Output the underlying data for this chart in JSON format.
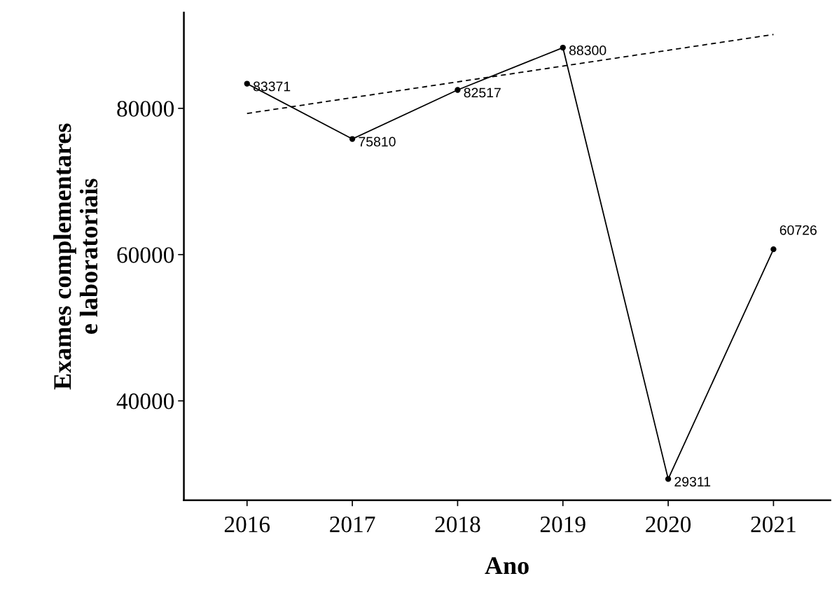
{
  "chart_data": {
    "type": "line",
    "xlabel": "Ano",
    "ylabel": "Exames complementares\ne laboratoriais",
    "x": [
      2016,
      2017,
      2018,
      2019,
      2020,
      2021
    ],
    "series": [
      {
        "color": "#000000",
        "values": [
          83371,
          75810,
          82517,
          88300,
          29311,
          60726
        ],
        "marker": "circle",
        "line_style": "solid",
        "data_labels": true
      },
      {
        "color": "#000000",
        "x": [
          2016,
          2021
        ],
        "values": [
          79300,
          90100
        ],
        "marker": "none",
        "line_style": "dashed"
      }
    ],
    "xlim": [
      2015.4,
      2021.54
    ],
    "xticks": [
      2016,
      2017,
      2018,
      2019,
      2020,
      2021
    ],
    "ylim": [
      26400,
      93100
    ],
    "yticks": [
      40000,
      60000,
      80000
    ],
    "grid": false
  }
}
